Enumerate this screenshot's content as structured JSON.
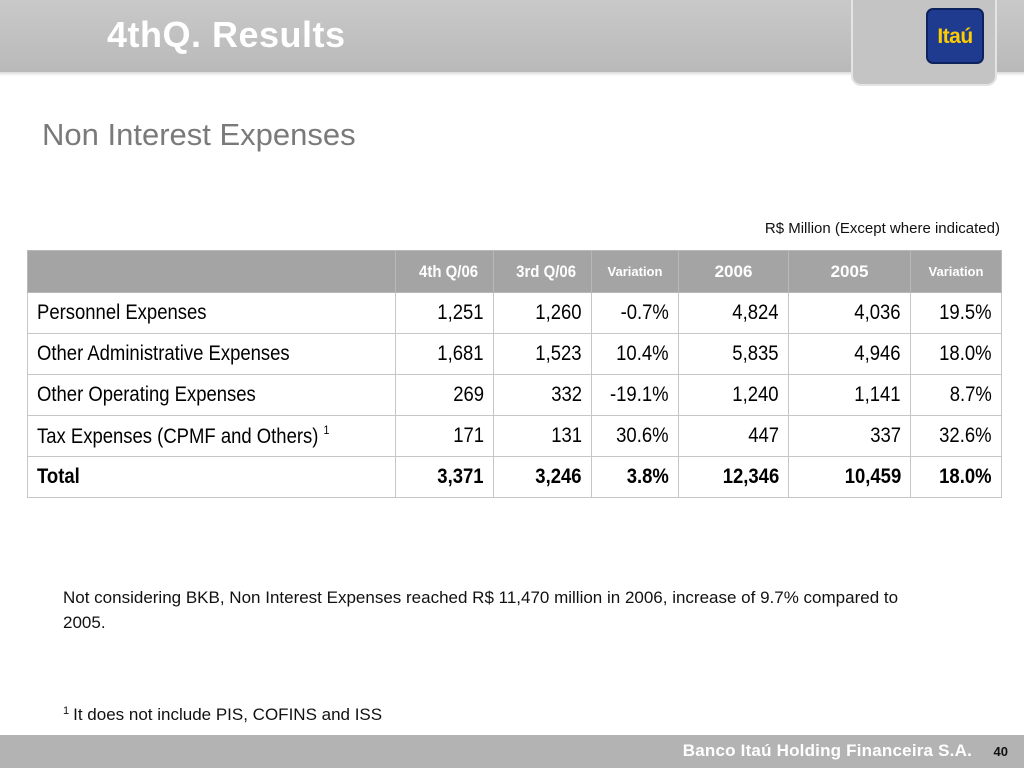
{
  "slide": {
    "title": "4thQ. Results"
  },
  "logo": {
    "text": "Itaú"
  },
  "section_title": "Non Interest Expenses",
  "unit_note": "R$ Million (Except where indicated)",
  "table": {
    "columns": [
      "",
      "4th Q/06",
      "3rd Q/06",
      "Variation",
      "2006",
      "2005",
      "Variation"
    ],
    "rows": [
      {
        "label": "Personnel Expenses",
        "footnote": "",
        "values": [
          "1,251",
          "1,260",
          "-0.7%",
          "4,824",
          "4,036",
          "19.5%"
        ]
      },
      {
        "label": "Other Administrative Expenses",
        "footnote": "",
        "values": [
          "1,681",
          "1,523",
          "10.4%",
          "5,835",
          "4,946",
          "18.0%"
        ]
      },
      {
        "label": "Other Operating Expenses",
        "footnote": "",
        "values": [
          "269",
          "332",
          "-19.1%",
          "1,240",
          "1,141",
          "8.7%"
        ]
      },
      {
        "label": "Tax Expenses (CPMF and Others)",
        "footnote": "1",
        "values": [
          "171",
          "131",
          "30.6%",
          "447",
          "337",
          "32.6%"
        ]
      }
    ],
    "total": {
      "label": "Total",
      "values": [
        "3,371",
        "3,246",
        "3.8%",
        "12,346",
        "10,459",
        "18.0%"
      ]
    }
  },
  "note": "Not considering BKB, Non Interest Expenses reached R$ 11,470 million in 2006, increase of 9.7% compared to 2005.",
  "footnote": {
    "marker": "1",
    "text": "It does not include PIS, COFINS and ISS"
  },
  "footer": {
    "company": "Banco Itaú Holding Financeira S.A.",
    "page_number": "40"
  }
}
